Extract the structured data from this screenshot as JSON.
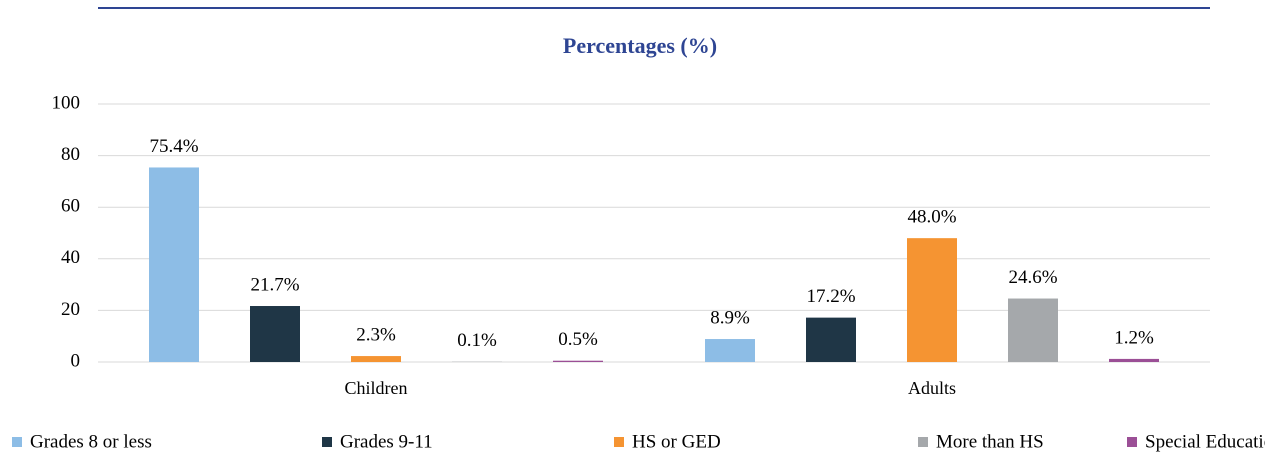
{
  "chart_data": {
    "type": "bar",
    "title": "Percentages (%)",
    "categories": [
      "Children",
      "Adults"
    ],
    "series": [
      {
        "name": "Grades 8 or less",
        "color": "#8dbde6",
        "values": [
          75.4,
          8.9
        ],
        "value_labels": [
          "75.4%",
          "8.9%"
        ]
      },
      {
        "name": "Grades 9-11",
        "color": "#1f3646",
        "values": [
          21.7,
          17.2
        ],
        "value_labels": [
          "21.7%",
          "17.2%"
        ]
      },
      {
        "name": "HS or GED",
        "color": "#f59432",
        "values": [
          2.3,
          48.0
        ],
        "value_labels": [
          "2.3%",
          "48.0%"
        ]
      },
      {
        "name": "More than HS",
        "color": "#a5a8ab",
        "values": [
          0.1,
          24.6
        ],
        "value_labels": [
          "0.1%",
          "24.6%"
        ]
      },
      {
        "name": "Special Education",
        "color": "#9b4f96",
        "values": [
          0.5,
          1.2
        ],
        "value_labels": [
          "0.5%",
          "1.2%"
        ]
      }
    ],
    "ylim": [
      0,
      100
    ],
    "yticks": [
      0,
      20,
      40,
      60,
      80,
      100
    ],
    "grid": true,
    "legend": "bottom"
  }
}
